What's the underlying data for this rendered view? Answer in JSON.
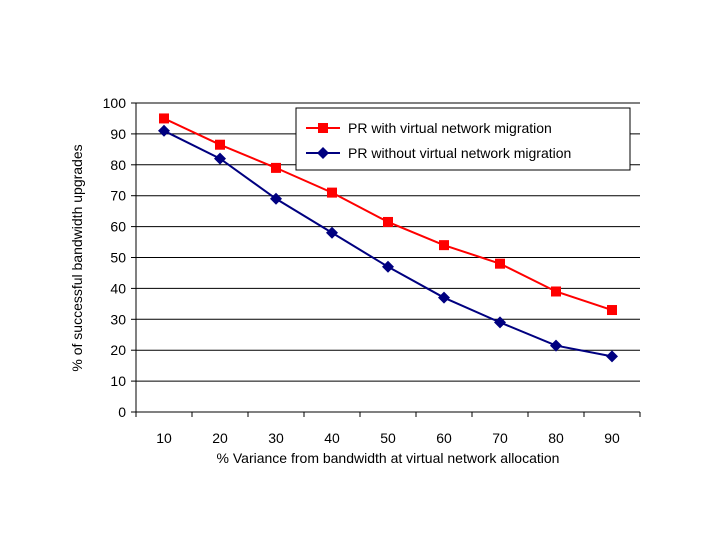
{
  "chart_data": {
    "type": "line",
    "title": "",
    "xlabel": "% Variance from bandwidth at virtual network allocation",
    "ylabel": "% of successful bandwidth upgrades",
    "categories": [
      "10",
      "20",
      "30",
      "40",
      "50",
      "60",
      "70",
      "80",
      "90"
    ],
    "ylim": [
      0,
      100
    ],
    "yticks": [
      "0",
      "10",
      "20",
      "30",
      "40",
      "50",
      "60",
      "70",
      "80",
      "90",
      "100"
    ],
    "grid": "horizontal",
    "legend_position": "top-right",
    "series": [
      {
        "name": "PR with virtual network migration",
        "color": "#ff0000",
        "marker": "square",
        "values": [
          95,
          86.5,
          79,
          71,
          61.5,
          54,
          48,
          39,
          33
        ]
      },
      {
        "name": "PR without virtual network migration",
        "color": "#000080",
        "marker": "diamond",
        "values": [
          91,
          82,
          69,
          58,
          47,
          37,
          29,
          21.5,
          18
        ]
      }
    ]
  }
}
